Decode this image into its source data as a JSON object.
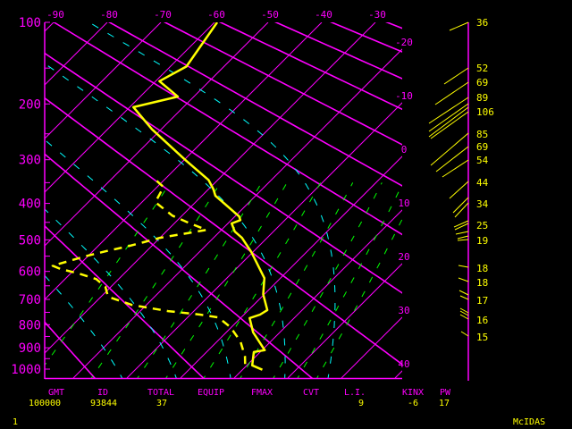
{
  "colors": {
    "axes": "#ff00ff",
    "sounding": "#ffff00",
    "moist_adiabat": "#00ffff",
    "mixing_ratio": "#00ff00",
    "background": "#000000"
  },
  "axes": {
    "pressure_labels": [
      "100",
      "200",
      "300",
      "400",
      "500",
      "600",
      "700",
      "800",
      "900",
      "1000"
    ],
    "pressure_values": [
      100,
      200,
      300,
      400,
      500,
      600,
      700,
      800,
      900,
      1000
    ],
    "top_temperature_labels": [
      "-90",
      "-80",
      "-70",
      "-60",
      "-50",
      "-40",
      "-30"
    ],
    "right_temperature_labels": [
      "-20",
      "-10",
      "0",
      "10",
      "20",
      "30",
      "40"
    ]
  },
  "sounding": {
    "temperature": [
      [
        100,
        -59.5
      ],
      [
        148,
        -57
      ],
      [
        167,
        -59.3
      ],
      [
        189,
        -53
      ],
      [
        205,
        -59.3
      ],
      [
        242,
        -51.7
      ],
      [
        301,
        -39.7
      ],
      [
        344,
        -31.7
      ],
      [
        366,
        -29
      ],
      [
        381,
        -27.5
      ],
      [
        434,
        -19.2
      ],
      [
        444,
        -18.3
      ],
      [
        453,
        -19.3
      ],
      [
        476,
        -17.2
      ],
      [
        494,
        -14.7
      ],
      [
        537,
        -10.3
      ],
      [
        623,
        -3
      ],
      [
        681,
        -0.2
      ],
      [
        741,
        3.5
      ],
      [
        759,
        3
      ],
      [
        773,
        1.7
      ],
      [
        832,
        5
      ],
      [
        911,
        10.5
      ],
      [
        919,
        8.8
      ],
      [
        982,
        11
      ],
      [
        1003,
        13.7
      ]
    ],
    "dewpoint": [
      [
        346,
        -41.2
      ],
      [
        360,
        -38.8
      ],
      [
        397,
        -37.5
      ],
      [
        432,
        -31.8
      ],
      [
        451,
        -27.5
      ],
      [
        471,
        -22.8
      ],
      [
        479,
        -25.2
      ],
      [
        494,
        -30
      ],
      [
        507,
        -32.2
      ],
      [
        521,
        -34.7
      ],
      [
        535,
        -37.7
      ],
      [
        549,
        -40.2
      ],
      [
        581,
        -44.8
      ],
      [
        592,
        -42.7
      ],
      [
        607,
        -38.5
      ],
      [
        626,
        -34.2
      ],
      [
        654,
        -31
      ],
      [
        690,
        -28.7
      ],
      [
        721,
        -22.7
      ],
      [
        745,
        -14.8
      ],
      [
        759,
        -8.2
      ],
      [
        770,
        -4.3
      ],
      [
        810,
        -0.2
      ],
      [
        871,
        4.3
      ],
      [
        940,
        8
      ],
      [
        990,
        10
      ]
    ]
  },
  "winds": {
    "labels": [
      "36",
      "52",
      "69",
      "89",
      "106",
      "85",
      "69",
      "54",
      "44",
      "34",
      "25",
      "19",
      "18",
      "18",
      "17",
      "16",
      "15"
    ]
  },
  "stats": {
    "headers": [
      "GMT",
      "ID",
      "TOTAL",
      "EQUIP",
      "FMAX",
      "CVT",
      "L.I.",
      "KINX",
      "PW"
    ],
    "values": [
      "100000",
      "93844",
      "37",
      "",
      "",
      "",
      "9",
      "-6",
      "17"
    ]
  },
  "footer": {
    "frame": "1",
    "brand": "McIDAS"
  }
}
